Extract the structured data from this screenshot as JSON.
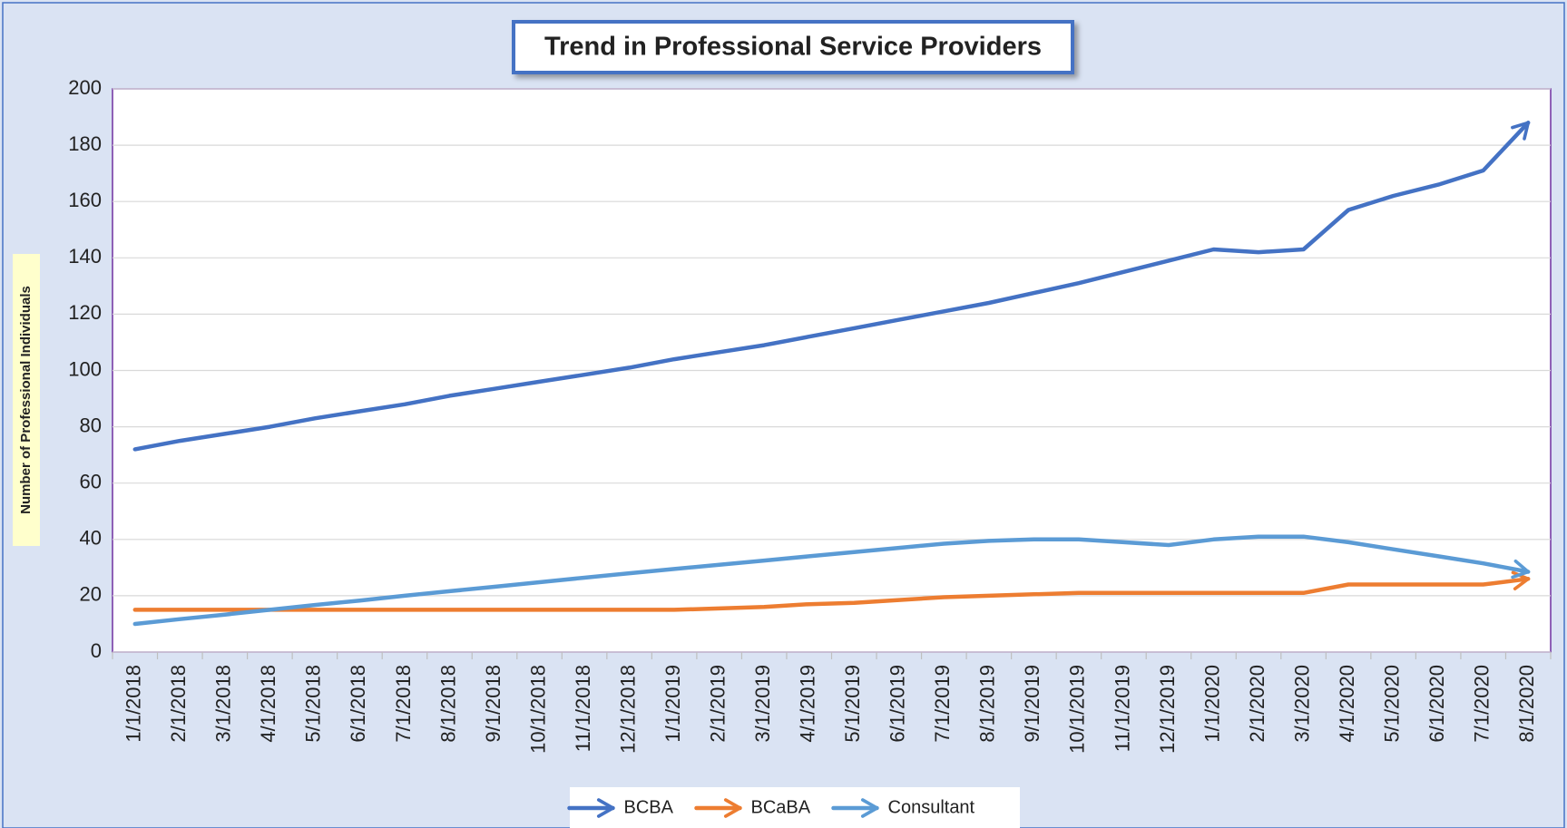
{
  "chart_data": {
    "type": "line",
    "title": "Trend in Professional Service Providers",
    "y_label": "Number of Professional Individuals",
    "categories": [
      "1/1/2018",
      "2/1/2018",
      "3/1/2018",
      "4/1/2018",
      "5/1/2018",
      "6/1/2018",
      "7/1/2018",
      "8/1/2018",
      "9/1/2018",
      "10/1/2018",
      "11/1/2018",
      "12/1/2018",
      "1/1/2019",
      "2/1/2019",
      "3/1/2019",
      "4/1/2019",
      "5/1/2019",
      "6/1/2019",
      "7/1/2019",
      "8/1/2019",
      "9/1/2019",
      "10/1/2019",
      "11/1/2019",
      "12/1/2019",
      "1/1/2020",
      "2/1/2020",
      "3/1/2020",
      "4/1/2020",
      "5/1/2020",
      "6/1/2020",
      "7/1/2020",
      "8/1/2020"
    ],
    "series": [
      {
        "name": "BCBA",
        "color": "#4472c4",
        "values": [
          72,
          75,
          77.5,
          80,
          83,
          85.5,
          88,
          91,
          93.5,
          96,
          98.5,
          101,
          104,
          106.5,
          109,
          112,
          115,
          118,
          121,
          124,
          127.5,
          131,
          135,
          139,
          143,
          142,
          143,
          157,
          162,
          166,
          171,
          188
        ]
      },
      {
        "name": "BCaBA",
        "color": "#ed7d31",
        "values": [
          15,
          15,
          15,
          15,
          15,
          15,
          15,
          15,
          15,
          15,
          15,
          15,
          15,
          15.5,
          16,
          17,
          17.5,
          18.5,
          19.5,
          20,
          20.5,
          21,
          21,
          21,
          21,
          21,
          21,
          24,
          24,
          24,
          24,
          26
        ]
      },
      {
        "name": "Consultant",
        "color": "#5b9bd5",
        "values": [
          10,
          11.7,
          13.3,
          15,
          16.7,
          18.3,
          20,
          21.6,
          23.2,
          24.8,
          26.4,
          28,
          29.5,
          31,
          32.5,
          34,
          35.5,
          37,
          38.5,
          39.5,
          40,
          40,
          39,
          38,
          40,
          41,
          41,
          39,
          36.5,
          34,
          31.5,
          28.5
        ]
      }
    ],
    "ylim": [
      0,
      200
    ],
    "yticks": [
      0,
      20,
      40,
      60,
      80,
      100,
      120,
      140,
      160,
      180,
      200
    ],
    "grid": true,
    "legend": "bottom"
  }
}
